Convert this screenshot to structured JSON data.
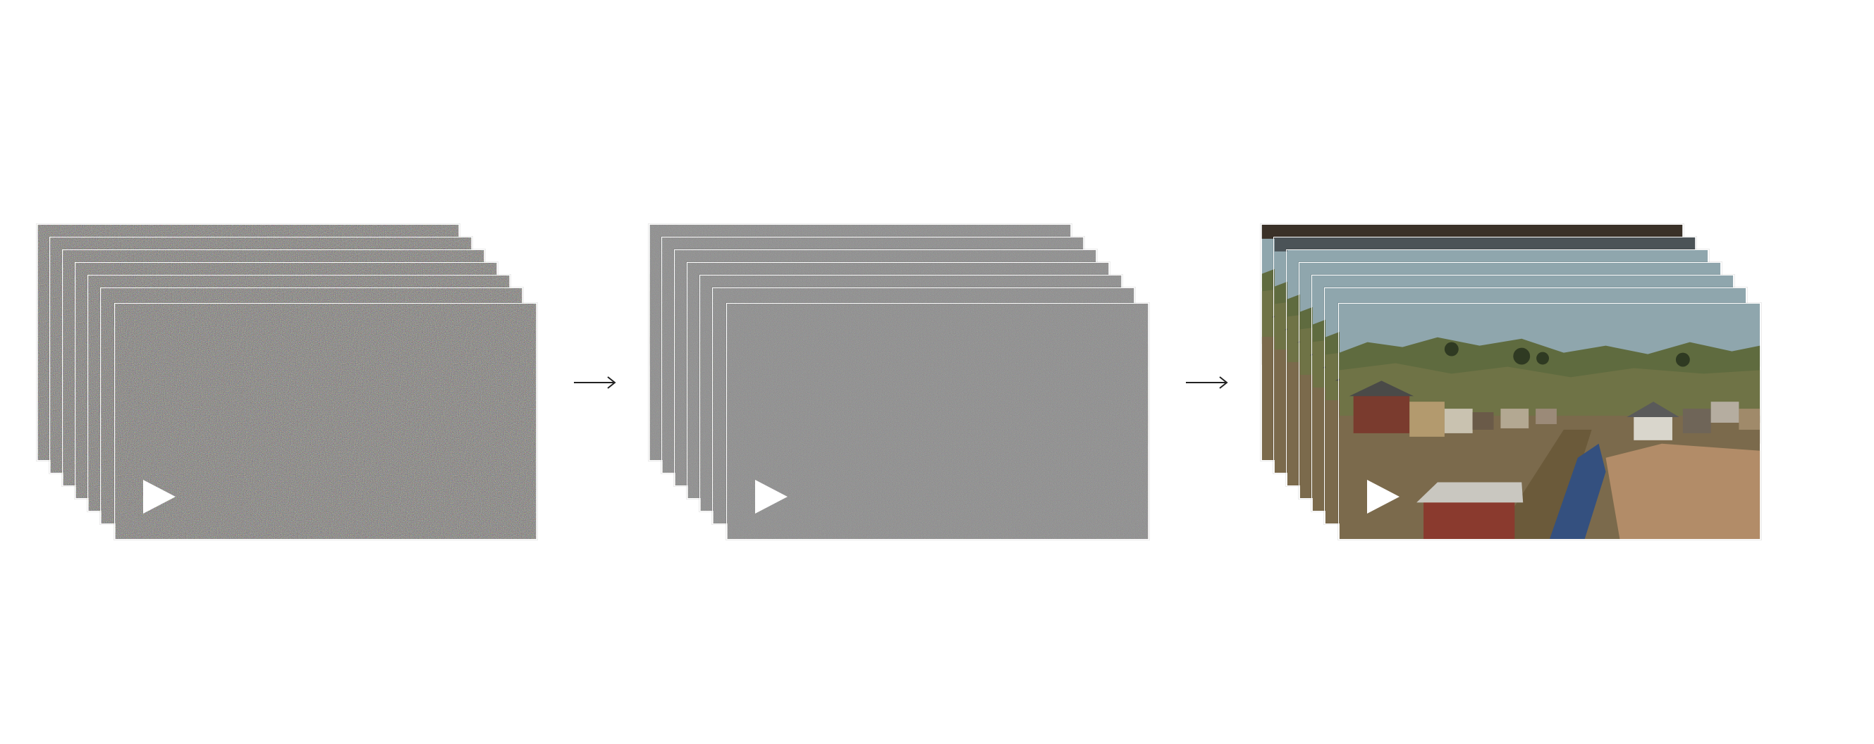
{
  "figure": {
    "stages": [
      {
        "id": "stage-1",
        "noise_level": "high"
      },
      {
        "id": "stage-2",
        "noise_level": "medium"
      },
      {
        "id": "stage-3",
        "noise_level": "none"
      }
    ],
    "frames_per_stack": 7,
    "arrow_icon": "right-arrow-icon",
    "play_icon": "play-icon"
  }
}
